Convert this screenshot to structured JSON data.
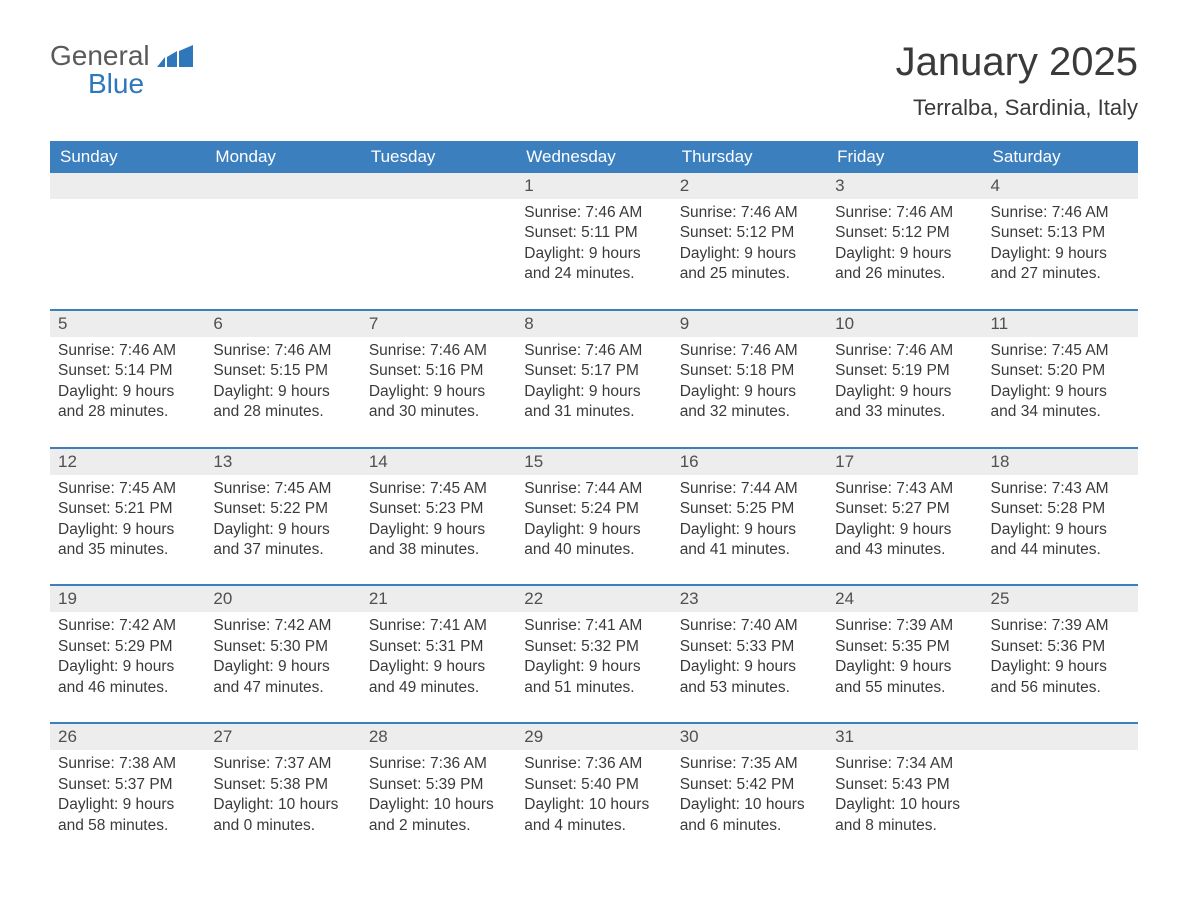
{
  "logo": {
    "word1": "General",
    "word2": "Blue",
    "accent_color": "#2f77bb"
  },
  "title": "January 2025",
  "location": "Terralba, Sardinia, Italy",
  "colors": {
    "header_bg": "#3b7fbf",
    "header_text": "#ffffff",
    "daynum_bg": "#ededed",
    "row_border": "#3b7fbf",
    "body_text": "#3a3a3a",
    "page_bg": "#ffffff"
  },
  "typography": {
    "title_fontsize": 40,
    "location_fontsize": 22,
    "dayheader_fontsize": 17,
    "cell_fontsize": 15.5
  },
  "day_headers": [
    "Sunday",
    "Monday",
    "Tuesday",
    "Wednesday",
    "Thursday",
    "Friday",
    "Saturday"
  ],
  "weeks": [
    [
      null,
      null,
      null,
      {
        "n": "1",
        "sunrise": "7:46 AM",
        "sunset": "5:11 PM",
        "daylight": "9 hours and 24 minutes."
      },
      {
        "n": "2",
        "sunrise": "7:46 AM",
        "sunset": "5:12 PM",
        "daylight": "9 hours and 25 minutes."
      },
      {
        "n": "3",
        "sunrise": "7:46 AM",
        "sunset": "5:12 PM",
        "daylight": "9 hours and 26 minutes."
      },
      {
        "n": "4",
        "sunrise": "7:46 AM",
        "sunset": "5:13 PM",
        "daylight": "9 hours and 27 minutes."
      }
    ],
    [
      {
        "n": "5",
        "sunrise": "7:46 AM",
        "sunset": "5:14 PM",
        "daylight": "9 hours and 28 minutes."
      },
      {
        "n": "6",
        "sunrise": "7:46 AM",
        "sunset": "5:15 PM",
        "daylight": "9 hours and 28 minutes."
      },
      {
        "n": "7",
        "sunrise": "7:46 AM",
        "sunset": "5:16 PM",
        "daylight": "9 hours and 30 minutes."
      },
      {
        "n": "8",
        "sunrise": "7:46 AM",
        "sunset": "5:17 PM",
        "daylight": "9 hours and 31 minutes."
      },
      {
        "n": "9",
        "sunrise": "7:46 AM",
        "sunset": "5:18 PM",
        "daylight": "9 hours and 32 minutes."
      },
      {
        "n": "10",
        "sunrise": "7:46 AM",
        "sunset": "5:19 PM",
        "daylight": "9 hours and 33 minutes."
      },
      {
        "n": "11",
        "sunrise": "7:45 AM",
        "sunset": "5:20 PM",
        "daylight": "9 hours and 34 minutes."
      }
    ],
    [
      {
        "n": "12",
        "sunrise": "7:45 AM",
        "sunset": "5:21 PM",
        "daylight": "9 hours and 35 minutes."
      },
      {
        "n": "13",
        "sunrise": "7:45 AM",
        "sunset": "5:22 PM",
        "daylight": "9 hours and 37 minutes."
      },
      {
        "n": "14",
        "sunrise": "7:45 AM",
        "sunset": "5:23 PM",
        "daylight": "9 hours and 38 minutes."
      },
      {
        "n": "15",
        "sunrise": "7:44 AM",
        "sunset": "5:24 PM",
        "daylight": "9 hours and 40 minutes."
      },
      {
        "n": "16",
        "sunrise": "7:44 AM",
        "sunset": "5:25 PM",
        "daylight": "9 hours and 41 minutes."
      },
      {
        "n": "17",
        "sunrise": "7:43 AM",
        "sunset": "5:27 PM",
        "daylight": "9 hours and 43 minutes."
      },
      {
        "n": "18",
        "sunrise": "7:43 AM",
        "sunset": "5:28 PM",
        "daylight": "9 hours and 44 minutes."
      }
    ],
    [
      {
        "n": "19",
        "sunrise": "7:42 AM",
        "sunset": "5:29 PM",
        "daylight": "9 hours and 46 minutes."
      },
      {
        "n": "20",
        "sunrise": "7:42 AM",
        "sunset": "5:30 PM",
        "daylight": "9 hours and 47 minutes."
      },
      {
        "n": "21",
        "sunrise": "7:41 AM",
        "sunset": "5:31 PM",
        "daylight": "9 hours and 49 minutes."
      },
      {
        "n": "22",
        "sunrise": "7:41 AM",
        "sunset": "5:32 PM",
        "daylight": "9 hours and 51 minutes."
      },
      {
        "n": "23",
        "sunrise": "7:40 AM",
        "sunset": "5:33 PM",
        "daylight": "9 hours and 53 minutes."
      },
      {
        "n": "24",
        "sunrise": "7:39 AM",
        "sunset": "5:35 PM",
        "daylight": "9 hours and 55 minutes."
      },
      {
        "n": "25",
        "sunrise": "7:39 AM",
        "sunset": "5:36 PM",
        "daylight": "9 hours and 56 minutes."
      }
    ],
    [
      {
        "n": "26",
        "sunrise": "7:38 AM",
        "sunset": "5:37 PM",
        "daylight": "9 hours and 58 minutes."
      },
      {
        "n": "27",
        "sunrise": "7:37 AM",
        "sunset": "5:38 PM",
        "daylight": "10 hours and 0 minutes."
      },
      {
        "n": "28",
        "sunrise": "7:36 AM",
        "sunset": "5:39 PM",
        "daylight": "10 hours and 2 minutes."
      },
      {
        "n": "29",
        "sunrise": "7:36 AM",
        "sunset": "5:40 PM",
        "daylight": "10 hours and 4 minutes."
      },
      {
        "n": "30",
        "sunrise": "7:35 AM",
        "sunset": "5:42 PM",
        "daylight": "10 hours and 6 minutes."
      },
      {
        "n": "31",
        "sunrise": "7:34 AM",
        "sunset": "5:43 PM",
        "daylight": "10 hours and 8 minutes."
      },
      null
    ]
  ],
  "labels": {
    "sunrise": "Sunrise: ",
    "sunset": "Sunset: ",
    "daylight": "Daylight: "
  }
}
